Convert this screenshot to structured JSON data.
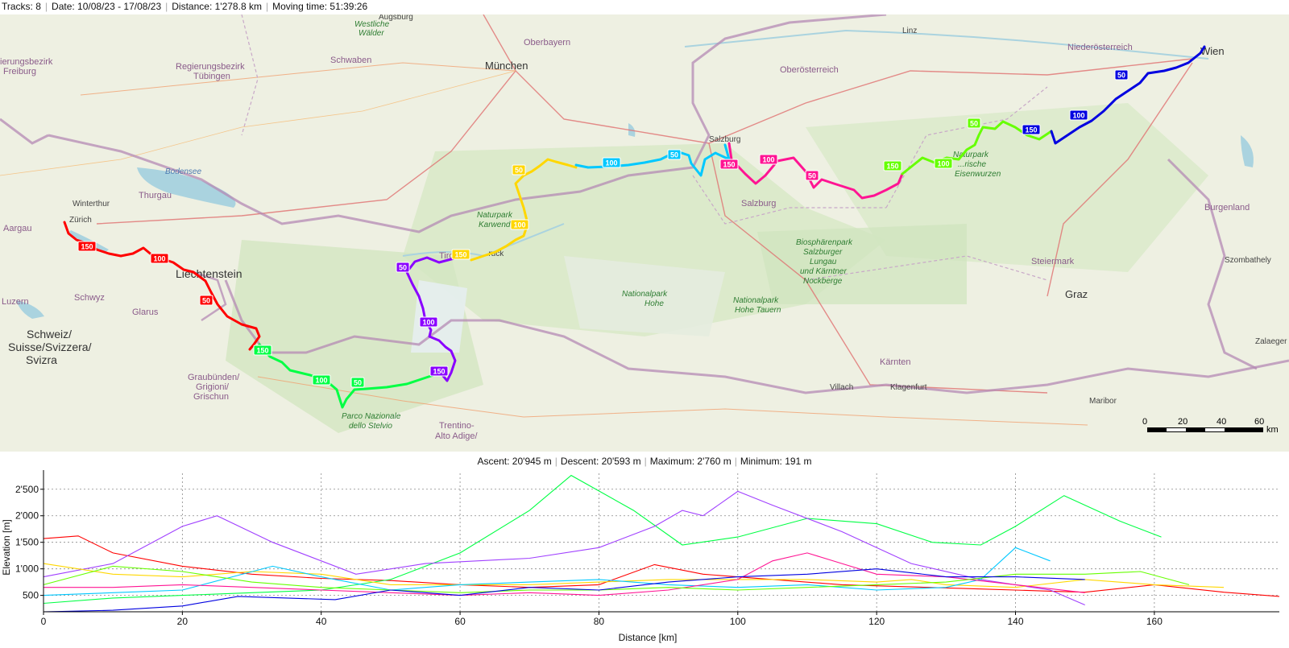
{
  "stats": {
    "tracks": "Tracks: 8",
    "date": "Date: 10/08/23 - 17/08/23",
    "distance": "Distance: 1'278.8 km",
    "moving_time": "Moving time: 51:39:26"
  },
  "map": {
    "labels": {
      "augsburg": "Augsburg",
      "westliche": "Westliche",
      "walder": "Wälder",
      "oberbayern": "Oberbayern",
      "munchen": "München",
      "linz": "Linz",
      "niederosterreich": "Niederösterreich",
      "wien": "Wien",
      "oberosterreich": "Oberösterreich",
      "schwaben": "Schwaben",
      "regbez_freiburg_1": "ierungsbezirk",
      "regbez_freiburg_2": "Freiburg",
      "regbez_tubingen_1": "Regierungsbezirk",
      "regbez_tubingen_2": "Tübingen",
      "bodensee": "Bodensee",
      "thurgau": "Thurgau",
      "winterthur": "Winterthur",
      "zurich": "Zürich",
      "aargau": "Aargau",
      "liechtenstein": "Liechtenstein",
      "schwyz": "Schwyz",
      "glarus": "Glarus",
      "luzern": "Luzern",
      "schweiz_1": "Schweiz/",
      "schweiz_2": "Suisse/Svizzera/",
      "schweiz_3": "Svizra",
      "graubunden_1": "Graubünden/",
      "graubunden_2": "Grigioni/",
      "graubunden_3": "Grischun",
      "stelvio_1": "Parco Nazionale",
      "stelvio_2": "dello Stelvio",
      "trentino_1": "Trentino-",
      "trentino_2": "Alto Adige/",
      "tirol": "Tirol",
      "innsbruck": "...ruck",
      "karwendel_1": "Naturpark",
      "karwendel_2": "Karwendel",
      "salzburg_city": "Salzburg",
      "salzburg_state": "Salzburg",
      "hohe_tauern_1": "Nationalpark",
      "hohe_tauern_2": "Hohe",
      "hohe_tauern_3": "Nationalpark",
      "hohe_tauern_4": "Hohe Tauern",
      "biosphere_1": "Biosphärenpark",
      "biosphere_2": "Salzburger",
      "biosphere_3": "Lungau",
      "biosphere_4": "und Kärntner",
      "biosphere_5": "Nockberge",
      "eisenwurzen_1": "Naturpark",
      "eisenwurzen_2": "...rische",
      "eisenwurzen_3": "Eisenwurzen",
      "steiermark": "Steiermark",
      "graz": "Graz",
      "burgenland": "Burgenland",
      "szombathely": "Szombathely",
      "zalaeger": "Zalaeger",
      "karnten": "Kärnten",
      "villach": "Villach",
      "klagenfurt": "Klagenfurt",
      "maribor": "Maribor"
    },
    "scale": {
      "t0": "0",
      "t1": "20",
      "t2": "40",
      "t3": "60",
      "unit": "km"
    },
    "tracks": [
      {
        "color": "#ff0000",
        "markers": [
          {
            "label": "150"
          },
          {
            "label": "100"
          },
          {
            "label": "50"
          }
        ]
      },
      {
        "color": "#00ff44",
        "markers": [
          {
            "label": "150"
          },
          {
            "label": "100"
          },
          {
            "label": "50"
          }
        ]
      },
      {
        "color": "#8a00ff",
        "markers": [
          {
            "label": "50"
          },
          {
            "label": "100"
          },
          {
            "label": "150"
          }
        ]
      },
      {
        "color": "#ffd700",
        "markers": [
          {
            "label": "150"
          },
          {
            "label": "100"
          },
          {
            "label": "50"
          }
        ]
      },
      {
        "color": "#00c8ff",
        "markers": [
          {
            "label": "100"
          },
          {
            "label": "50"
          }
        ]
      },
      {
        "color": "#ff1493",
        "markers": [
          {
            "label": "150"
          },
          {
            "label": "100"
          },
          {
            "label": "50"
          }
        ]
      },
      {
        "color": "#66ff00",
        "markers": [
          {
            "label": "150"
          },
          {
            "label": "100"
          },
          {
            "label": "50"
          }
        ]
      },
      {
        "color": "#0000e0",
        "markers": [
          {
            "label": "150"
          },
          {
            "label": "100"
          },
          {
            "label": "50"
          }
        ]
      }
    ]
  },
  "elevation": {
    "ascent": "Ascent: 20'945 m",
    "descent": "Descent: 20'593 m",
    "maximum": "Maximum: 2'760 m",
    "minimum": "Minimum: 191 m"
  },
  "chart_data": {
    "type": "line",
    "xlabel": "Distance [km]",
    "ylabel": "Elevation [m]",
    "xlim": [
      0,
      178
    ],
    "ylim": [
      191,
      2800
    ],
    "x_ticks": [
      0,
      20,
      40,
      60,
      80,
      100,
      120,
      140,
      160
    ],
    "x_tick_labels": [
      "0",
      "20",
      "40",
      "60",
      "80",
      "100",
      "120",
      "140",
      "160"
    ],
    "y_ticks": [
      500,
      1000,
      1500,
      2000,
      2500
    ],
    "y_tick_labels": [
      "500",
      "1'000",
      "1'500",
      "2'000",
      "2'500"
    ],
    "grid": true,
    "series": [
      {
        "color": "#ff0000",
        "x": [
          0,
          5,
          10,
          20,
          30,
          40,
          50,
          60,
          70,
          80,
          88,
          95,
          105,
          115,
          125,
          135,
          145,
          150,
          160,
          170,
          178
        ],
        "y": [
          1570,
          1620,
          1300,
          1050,
          900,
          820,
          780,
          700,
          650,
          700,
          1080,
          900,
          800,
          700,
          660,
          620,
          580,
          560,
          700,
          560,
          480
        ]
      },
      {
        "color": "#00ff44",
        "x": [
          0,
          10,
          20,
          30,
          40,
          50,
          60,
          70,
          76,
          85,
          92,
          100,
          110,
          120,
          128,
          135,
          140,
          147,
          155,
          161
        ],
        "y": [
          350,
          450,
          500,
          550,
          600,
          800,
          1300,
          2100,
          2760,
          2100,
          1450,
          1600,
          1950,
          1850,
          1500,
          1450,
          1800,
          2380,
          1900,
          1600
        ]
      },
      {
        "color": "#a040ff",
        "x": [
          0,
          10,
          20,
          25,
          33,
          45,
          55,
          70,
          80,
          88,
          92,
          95,
          100,
          105,
          115,
          125,
          135,
          145,
          150
        ],
        "y": [
          850,
          1100,
          1800,
          2000,
          1500,
          900,
          1100,
          1200,
          1400,
          1800,
          2100,
          2000,
          2460,
          2200,
          1700,
          1100,
          800,
          600,
          320
        ]
      },
      {
        "color": "#ffd700",
        "x": [
          0,
          10,
          20,
          30,
          40,
          50,
          60,
          70,
          80,
          90,
          100,
          110,
          120,
          125,
          130,
          140,
          150,
          160,
          170
        ],
        "y": [
          1100,
          900,
          850,
          950,
          900,
          700,
          700,
          700,
          750,
          800,
          800,
          800,
          750,
          800,
          700,
          650,
          800,
          700,
          650
        ]
      },
      {
        "color": "#00c8ff",
        "x": [
          0,
          10,
          20,
          33,
          40,
          50,
          60,
          70,
          80,
          90,
          100,
          110,
          120,
          130,
          135,
          140,
          145
        ],
        "y": [
          500,
          550,
          600,
          1050,
          850,
          600,
          700,
          750,
          800,
          700,
          650,
          700,
          600,
          650,
          800,
          1400,
          1150
        ]
      },
      {
        "color": "#ff1493",
        "x": [
          0,
          10,
          20,
          30,
          40,
          50,
          60,
          70,
          80,
          90,
          100,
          105,
          110,
          115,
          120,
          130,
          140,
          150
        ],
        "y": [
          650,
          650,
          700,
          650,
          600,
          550,
          500,
          550,
          500,
          600,
          800,
          1150,
          1300,
          1100,
          900,
          850,
          700,
          550
        ]
      },
      {
        "color": "#66ff00",
        "x": [
          0,
          10,
          20,
          30,
          40,
          50,
          60,
          70,
          80,
          90,
          100,
          110,
          120,
          130,
          140,
          150,
          158,
          165
        ],
        "y": [
          700,
          1050,
          950,
          750,
          650,
          600,
          550,
          600,
          600,
          650,
          600,
          650,
          700,
          750,
          900,
          900,
          950,
          700
        ]
      },
      {
        "color": "#0000e0",
        "x": [
          0,
          10,
          20,
          28,
          35,
          42,
          50,
          60,
          70,
          80,
          90,
          100,
          110,
          120,
          130,
          140,
          150
        ],
        "y": [
          191,
          220,
          300,
          480,
          450,
          420,
          600,
          500,
          650,
          600,
          750,
          850,
          900,
          1000,
          850,
          850,
          800
        ]
      }
    ]
  }
}
